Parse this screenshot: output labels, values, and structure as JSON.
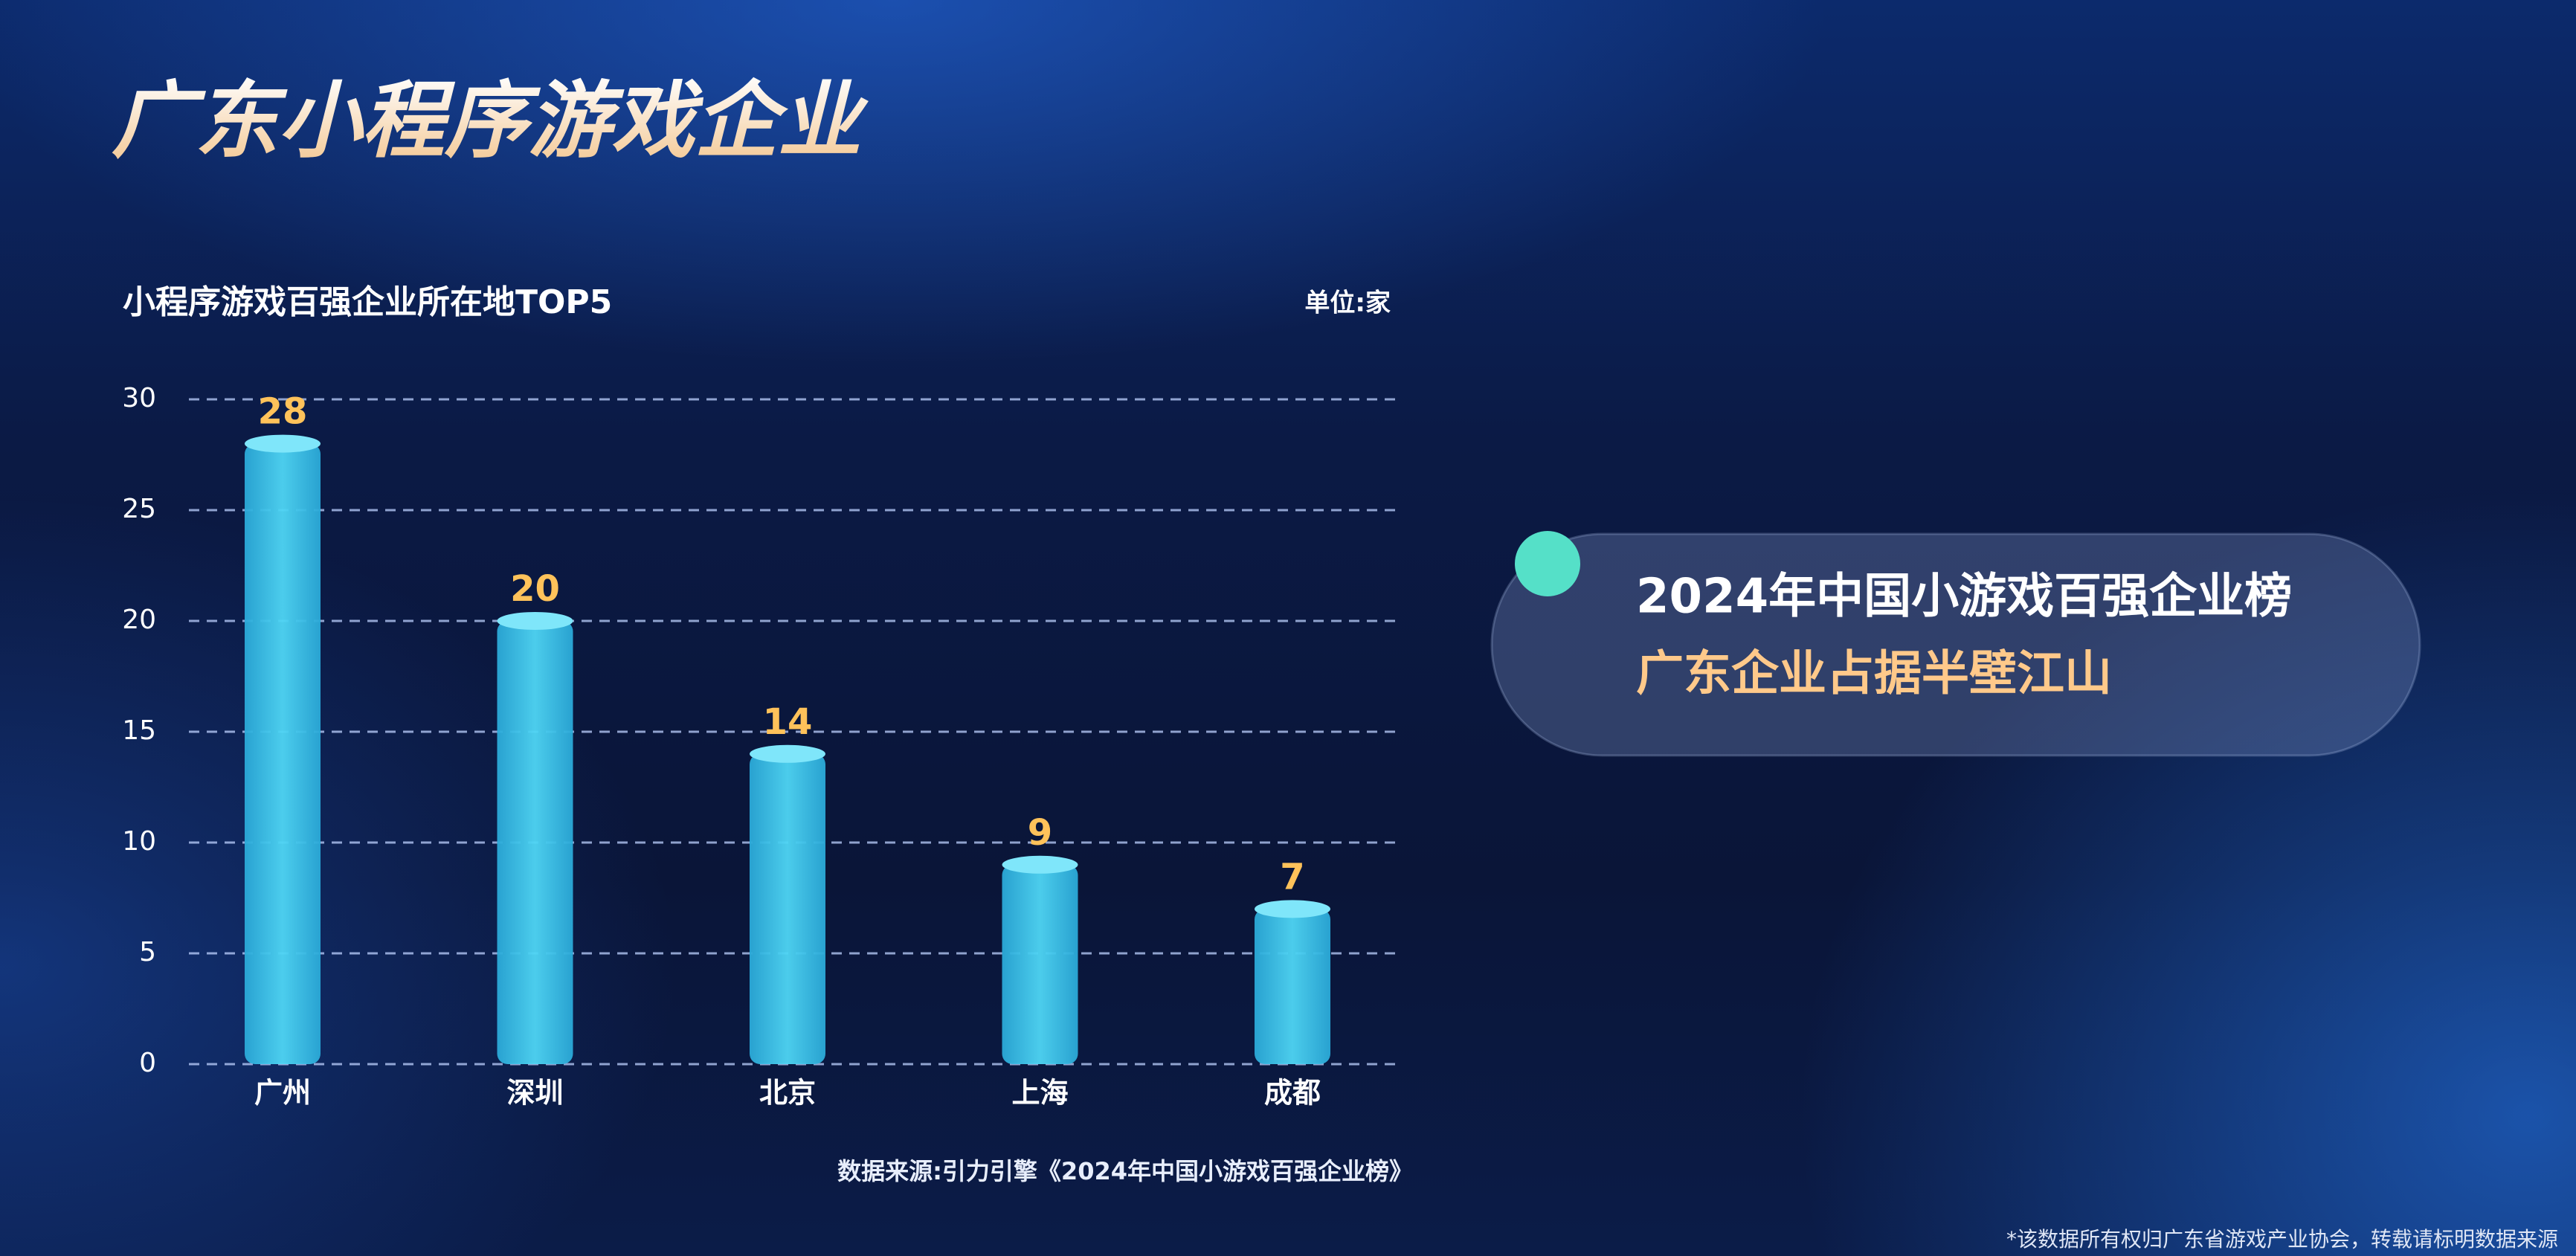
{
  "headline": "广东小程序游戏企业",
  "chart_data": {
    "type": "bar",
    "title": "小程序游戏百强企业所在地TOP5",
    "unit": "单位:家",
    "categories": [
      "广州",
      "深圳",
      "北京",
      "上海",
      "成都"
    ],
    "values": [
      28,
      20,
      14,
      9,
      7
    ],
    "color": "#35c8ee",
    "label_color": "#ffc25a",
    "ylim": [
      0,
      30
    ],
    "yticks": [
      0,
      5,
      10,
      15,
      20,
      25,
      30
    ],
    "grid": true
  },
  "source": "数据来源:引力引擎《2024年中国小游戏百强企业榜》",
  "callout": {
    "line1": "2024年中国小游戏百强企业榜",
    "line2": "广东企业占据半壁江山"
  },
  "footnote": "*该数据所有权归广东省游戏产业协会，转载请标明数据来源"
}
